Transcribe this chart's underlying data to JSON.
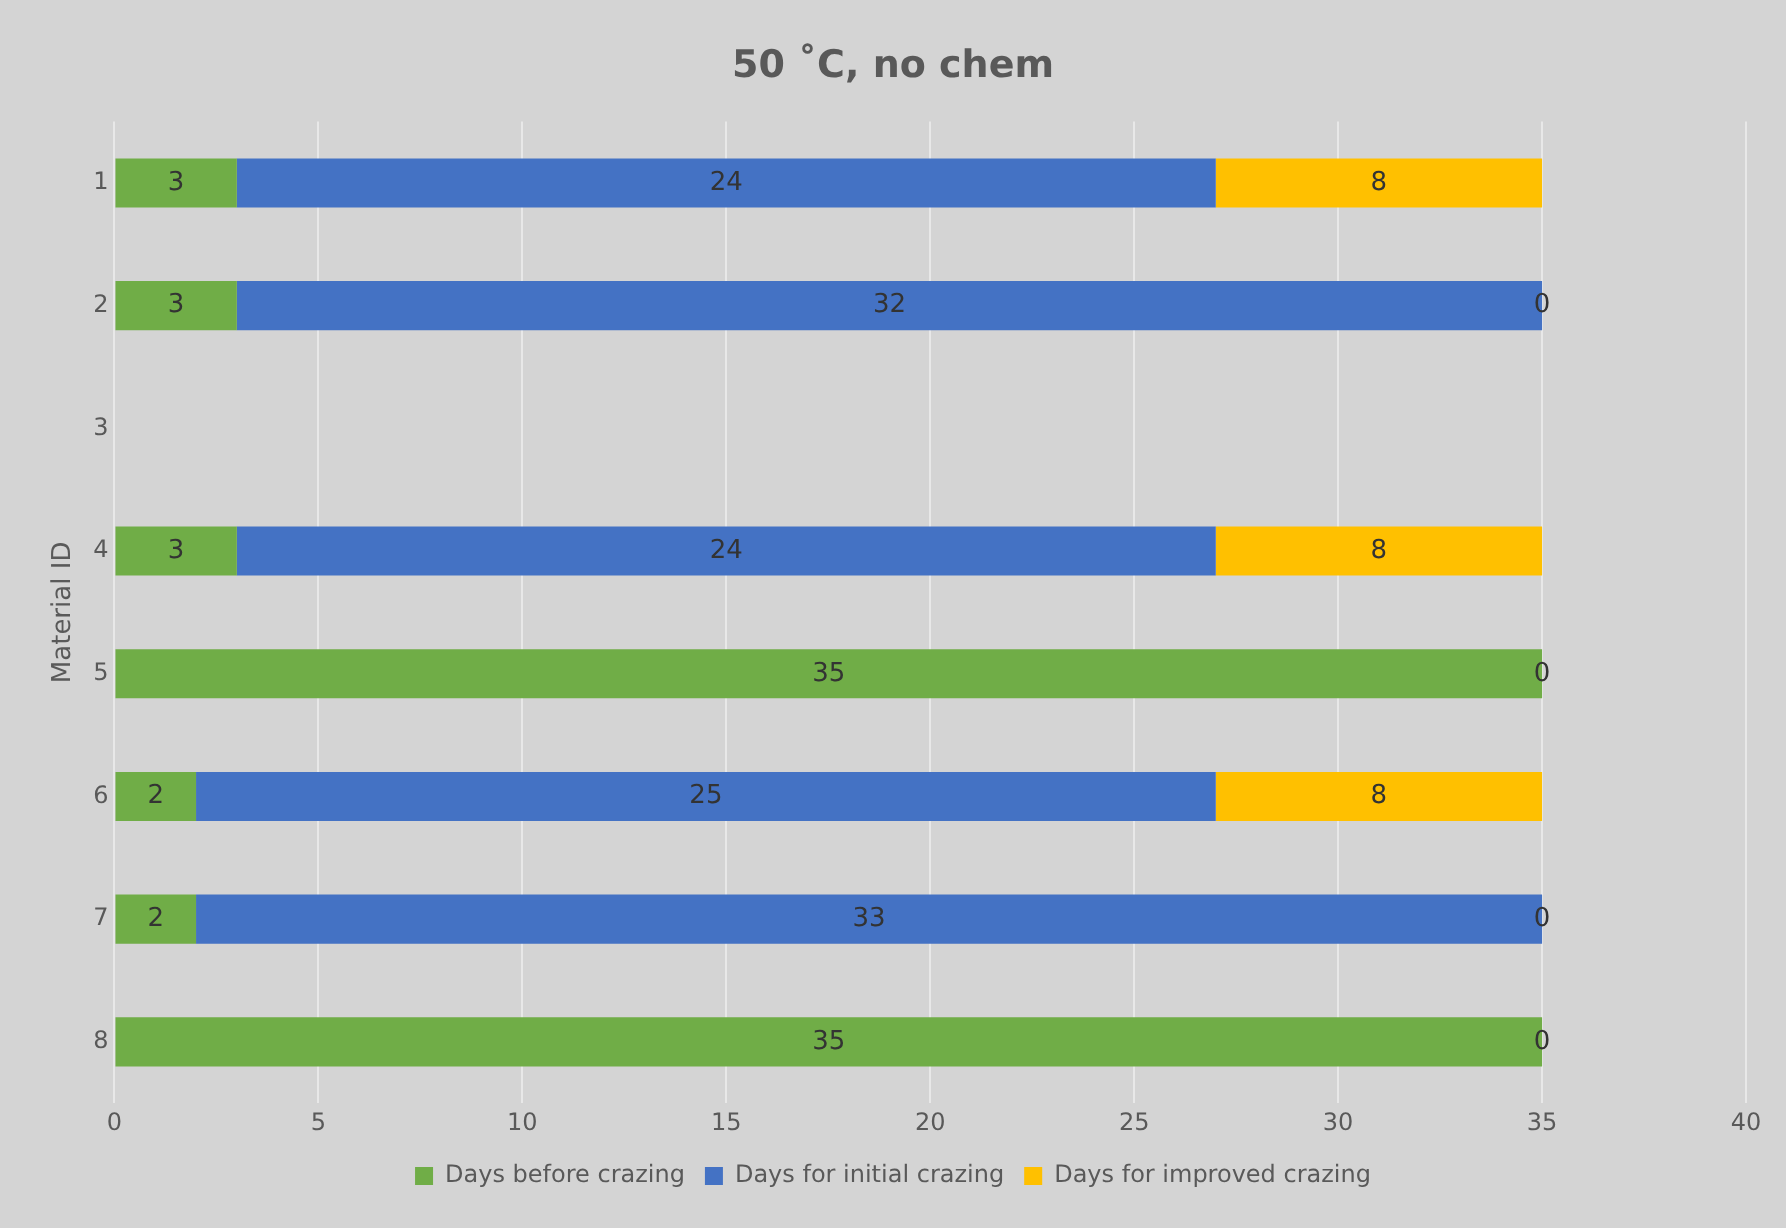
{
  "chart_data": {
    "type": "bar",
    "orientation": "horizontal",
    "stacked": true,
    "title": "50 ˚C, no chem",
    "ylabel": "Material ID",
    "categories": [
      "1",
      "2",
      "3",
      "4",
      "5",
      "6",
      "7",
      "8"
    ],
    "series": [
      {
        "name": "Days before crazing",
        "color": "#70ad47",
        "values": [
          3,
          3,
          null,
          3,
          35,
          2,
          2,
          35
        ]
      },
      {
        "name": "Days for initial crazing",
        "color": "#4472c4",
        "values": [
          24,
          32,
          null,
          24,
          null,
          25,
          33,
          null
        ]
      },
      {
        "name": "Days for improved crazing",
        "color": "#ffc000",
        "values": [
          8,
          0,
          null,
          8,
          0,
          8,
          0,
          0
        ]
      }
    ],
    "xlim": [
      0,
      40
    ],
    "xticks": [
      0,
      5,
      10,
      15,
      20,
      25,
      30,
      35,
      40
    ],
    "grid": "x",
    "legend": "bottom",
    "data_labels": true
  }
}
